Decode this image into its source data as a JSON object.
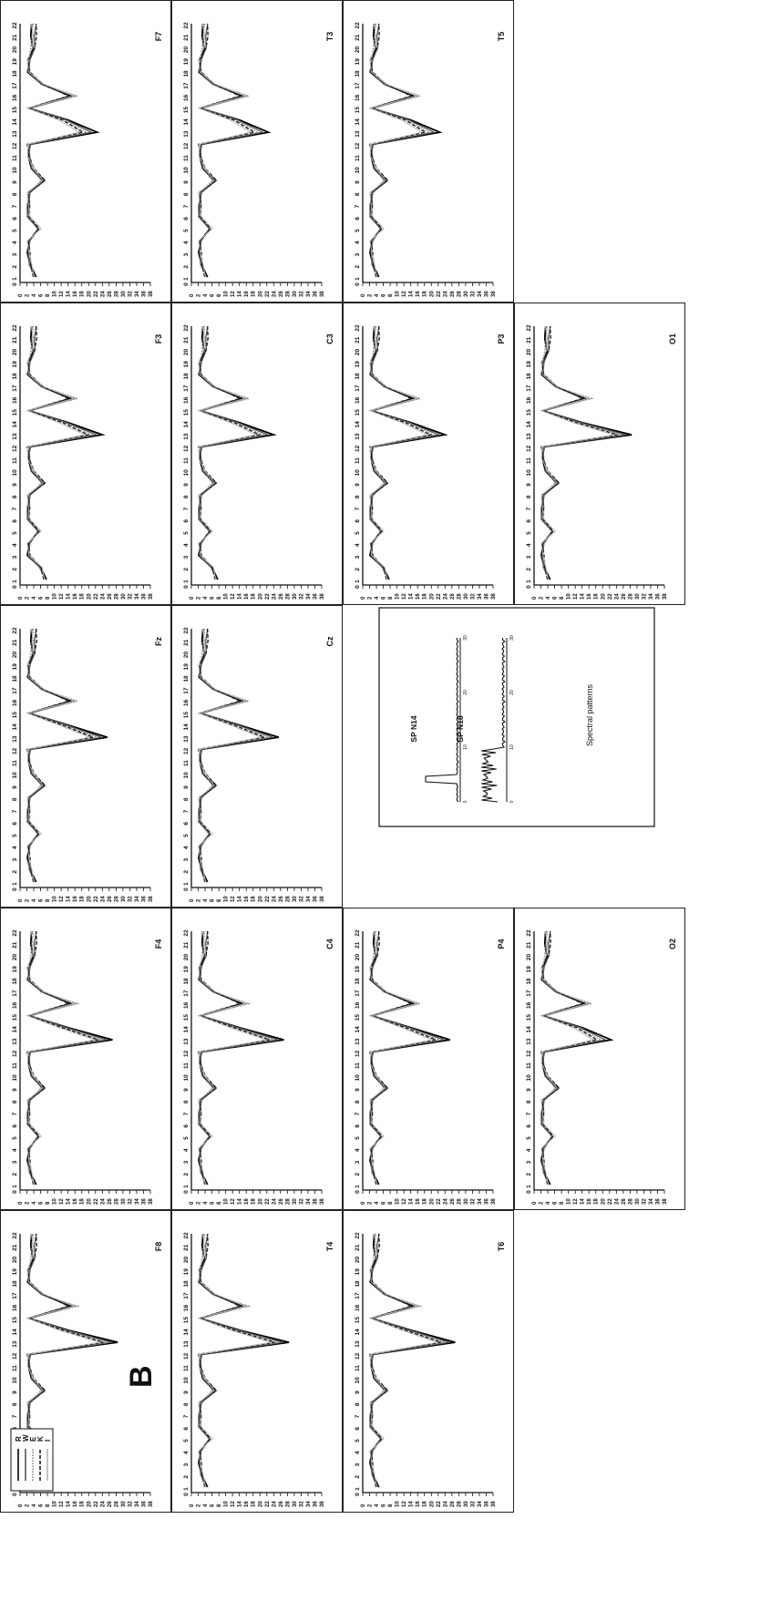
{
  "figure": {
    "panel_letter": "B",
    "legend": [
      "R",
      "W",
      "E",
      "K",
      "I"
    ]
  },
  "inset": {
    "caption": "Spectral patterns",
    "patterns": [
      {
        "label": "SP N14",
        "x_ticks": [
          "0",
          "10",
          "20",
          "30"
        ]
      },
      {
        "label": "SP N18",
        "x_ticks": [
          "0",
          "10",
          "20",
          "30"
        ]
      }
    ]
  },
  "chart_data": [
    {
      "type": "line",
      "title": "F7",
      "x": [
        1,
        2,
        3,
        4,
        5,
        6,
        7,
        8,
        9,
        10,
        11,
        12,
        13,
        14,
        15,
        16,
        17,
        18,
        19,
        20,
        21,
        22
      ],
      "ylim": [
        0,
        38
      ]
    },
    {
      "type": "line",
      "title": "F3",
      "x": [
        1,
        2,
        3,
        4,
        5,
        6,
        7,
        8,
        9,
        10,
        11,
        12,
        13,
        14,
        15,
        16,
        17,
        18,
        19,
        20,
        21,
        22
      ],
      "ylim": [
        0,
        38
      ]
    },
    {
      "type": "line",
      "title": "Fz",
      "x": [
        1,
        2,
        3,
        4,
        5,
        6,
        7,
        8,
        9,
        10,
        11,
        12,
        13,
        14,
        15,
        16,
        17,
        18,
        19,
        20,
        21,
        22
      ],
      "ylim": [
        0,
        38
      ]
    },
    {
      "type": "line",
      "title": "F4",
      "x": [
        1,
        2,
        3,
        4,
        5,
        6,
        7,
        8,
        9,
        10,
        11,
        12,
        13,
        14,
        15,
        16,
        17,
        18,
        19,
        20,
        21,
        22
      ],
      "ylim": [
        0,
        38
      ]
    },
    {
      "type": "line",
      "title": "F8",
      "x": [
        1,
        2,
        3,
        4,
        5,
        6,
        7,
        8,
        9,
        10,
        11,
        12,
        13,
        14,
        15,
        16,
        17,
        18,
        19,
        20,
        21,
        22
      ],
      "ylim": [
        0,
        38
      ]
    },
    {
      "type": "line",
      "title": "T3",
      "x": [
        1,
        2,
        3,
        4,
        5,
        6,
        7,
        8,
        9,
        10,
        11,
        12,
        13,
        14,
        15,
        16,
        17,
        18,
        19,
        20,
        21,
        22
      ],
      "ylim": [
        0,
        38
      ]
    },
    {
      "type": "line",
      "title": "C3",
      "x": [
        1,
        2,
        3,
        4,
        5,
        6,
        7,
        8,
        9,
        10,
        11,
        12,
        13,
        14,
        15,
        16,
        17,
        18,
        19,
        20,
        21,
        22
      ],
      "ylim": [
        0,
        38
      ]
    },
    {
      "type": "line",
      "title": "Cz",
      "x": [
        1,
        2,
        3,
        4,
        5,
        6,
        7,
        8,
        9,
        10,
        11,
        12,
        13,
        14,
        15,
        16,
        17,
        18,
        19,
        20,
        21,
        22
      ],
      "ylim": [
        0,
        38
      ]
    },
    {
      "type": "line",
      "title": "C4",
      "x": [
        1,
        2,
        3,
        4,
        5,
        6,
        7,
        8,
        9,
        10,
        11,
        12,
        13,
        14,
        15,
        16,
        17,
        18,
        19,
        20,
        21,
        22
      ],
      "ylim": [
        0,
        38
      ]
    },
    {
      "type": "line",
      "title": "T4",
      "x": [
        1,
        2,
        3,
        4,
        5,
        6,
        7,
        8,
        9,
        10,
        11,
        12,
        13,
        14,
        15,
        16,
        17,
        18,
        19,
        20,
        21,
        22
      ],
      "ylim": [
        0,
        38
      ]
    },
    {
      "type": "line",
      "title": "T5",
      "x": [
        1,
        2,
        3,
        4,
        5,
        6,
        7,
        8,
        9,
        10,
        11,
        12,
        13,
        14,
        15,
        16,
        17,
        18,
        19,
        20,
        21,
        22
      ],
      "ylim": [
        0,
        38
      ]
    },
    {
      "type": "line",
      "title": "P3",
      "x": [
        1,
        2,
        3,
        4,
        5,
        6,
        7,
        8,
        9,
        10,
        11,
        12,
        13,
        14,
        15,
        16,
        17,
        18,
        19,
        20,
        21,
        22
      ],
      "ylim": [
        0,
        38
      ]
    },
    {
      "type": "line",
      "title": "P4",
      "x": [
        1,
        2,
        3,
        4,
        5,
        6,
        7,
        8,
        9,
        10,
        11,
        12,
        13,
        14,
        15,
        16,
        17,
        18,
        19,
        20,
        21,
        22
      ],
      "ylim": [
        0,
        38
      ]
    },
    {
      "type": "line",
      "title": "T6",
      "x": [
        1,
        2,
        3,
        4,
        5,
        6,
        7,
        8,
        9,
        10,
        11,
        12,
        13,
        14,
        15,
        16,
        17,
        18,
        19,
        20,
        21,
        22
      ],
      "ylim": [
        0,
        38
      ]
    },
    {
      "type": "line",
      "title": "O1",
      "x": [
        1,
        2,
        3,
        4,
        5,
        6,
        7,
        8,
        9,
        10,
        11,
        12,
        13,
        14,
        15,
        16,
        17,
        18,
        19,
        20,
        21,
        22
      ],
      "ylim": [
        0,
        38
      ]
    },
    {
      "type": "line",
      "title": "O2",
      "x": [
        1,
        2,
        3,
        4,
        5,
        6,
        7,
        8,
        9,
        10,
        11,
        12,
        13,
        14,
        15,
        16,
        17,
        18,
        19,
        20,
        21,
        22
      ],
      "ylim": [
        0,
        38
      ]
    }
  ],
  "style": {
    "series_colors": [
      "#000000",
      "#555555",
      "#888888",
      "#1a1a1a",
      "#b5b5b5"
    ]
  }
}
